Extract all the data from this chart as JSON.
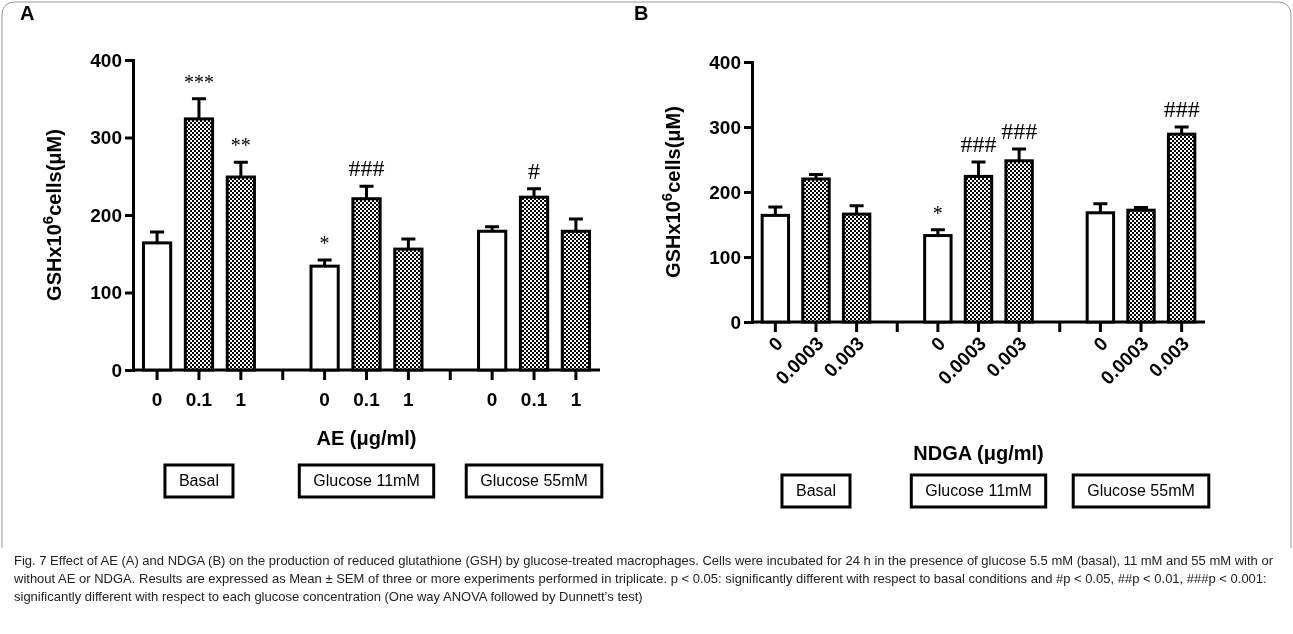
{
  "chart_data": [
    {
      "type": "bar",
      "title": "A",
      "ylabel": "GSHx10$^{6}$cells(μM)",
      "xlabel": "AE (μg/ml)",
      "categories": [
        "0",
        "0.1",
        "1",
        null,
        "0",
        "0.1",
        "1",
        null,
        "0",
        "0.1",
        "1"
      ],
      "values": [
        164,
        324,
        249,
        null,
        134,
        221,
        156,
        null,
        179,
        223,
        179
      ],
      "errors": [
        14,
        26,
        19,
        null,
        8,
        16,
        13,
        null,
        6,
        11,
        16
      ],
      "colors": [
        "#ffffff",
        "#000000",
        "#000000",
        null,
        "#ffffff",
        "#000000",
        "#000000",
        null,
        "#ffffff",
        "#000000",
        "#000000"
      ],
      "value_labels": [
        null,
        "***",
        "**",
        null,
        "*",
        "###",
        null,
        null,
        null,
        "#",
        null
      ],
      "ylim": [
        0,
        400
      ],
      "yticks": [
        0,
        100,
        200,
        300,
        400
      ],
      "annotations": [
        "Basal",
        "Glucose 11mM",
        "Glucose 55mM",
        "Fig. 7  Effect of AE (A) and NDGA (B) on the production of reduced glutathione (GSH) by glucose-treated macrophages. Cells were incubated for 24 h in the presence of glucose 5.5 mM (basal), 11 mM and 55 mM with or without AE or NDGA. Results are expressed as Mean ± SEM of three or more experiments performed in triplicate. p < 0.05: significantly different with respect to basal conditions and #p < 0.05, ##p < 0.01, ###p < 0.001: significantly different with respect to each glucose concentration (One way ANOVA followed by Dunnett’s test)"
      ]
    },
    {
      "type": "bar",
      "title": "B",
      "ylabel": "GSHx10$^{6}$cells(μM)",
      "xlabel": "NDGA (μg/ml)",
      "categories": [
        "0",
        "0.0003",
        "0.003",
        null,
        "0",
        "0.0003",
        "0.003",
        null,
        "0",
        "0.0003",
        "0.003"
      ],
      "values": [
        164,
        220,
        166,
        null,
        133,
        224,
        248,
        null,
        168,
        172,
        289
      ],
      "errors": [
        13,
        7,
        13,
        null,
        9,
        22,
        18,
        null,
        14,
        4,
        11
      ],
      "colors": [
        "#ffffff",
        "#000000",
        "#000000",
        null,
        "#ffffff",
        "#000000",
        "#000000",
        null,
        "#ffffff",
        "#000000",
        "#000000"
      ],
      "value_labels": [
        null,
        null,
        null,
        null,
        "*",
        "###",
        "###",
        null,
        null,
        null,
        "###"
      ],
      "ylim": [
        0,
        400
      ],
      "yticks": [
        0,
        100,
        200,
        300,
        400
      ],
      "annotations": [
        "Basal",
        "Glucose 11mM",
        "Glucose 55mM"
      ]
    }
  ]
}
